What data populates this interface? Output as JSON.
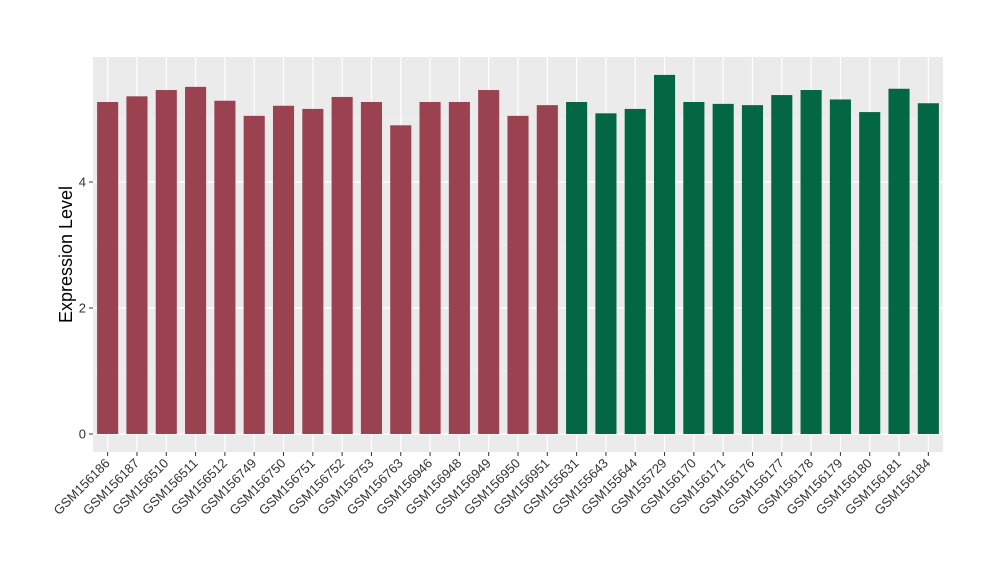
{
  "chart_data": {
    "type": "bar",
    "title": "",
    "xlabel": "",
    "ylabel": "Expression Level",
    "ylim": [
      0,
      5.95
    ],
    "yticks": [
      0,
      2,
      4
    ],
    "grid": true,
    "legend": "none",
    "panel_background": "#ebebeb",
    "categories": [
      "GSM156186",
      "GSM156187",
      "GSM156510",
      "GSM156511",
      "GSM156512",
      "GSM156749",
      "GSM156750",
      "GSM156751",
      "GSM156752",
      "GSM156753",
      "GSM156763",
      "GSM156946",
      "GSM156948",
      "GSM156949",
      "GSM156950",
      "GSM156951",
      "GSM155631",
      "GSM155643",
      "GSM155644",
      "GSM155729",
      "GSM156170",
      "GSM156171",
      "GSM156176",
      "GSM156177",
      "GSM156178",
      "GSM156179",
      "GSM156180",
      "GSM156181",
      "GSM156184"
    ],
    "values": [
      5.27,
      5.36,
      5.46,
      5.51,
      5.29,
      5.05,
      5.21,
      5.16,
      5.35,
      5.27,
      4.9,
      5.27,
      5.27,
      5.46,
      5.05,
      5.22,
      5.27,
      5.09,
      5.16,
      5.7,
      5.27,
      5.24,
      5.22,
      5.38,
      5.46,
      5.31,
      5.11,
      5.48,
      5.25
    ],
    "colors": [
      "#9b4250",
      "#9b4250",
      "#9b4250",
      "#9b4250",
      "#9b4250",
      "#9b4250",
      "#9b4250",
      "#9b4250",
      "#9b4250",
      "#9b4250",
      "#9b4250",
      "#9b4250",
      "#9b4250",
      "#9b4250",
      "#9b4250",
      "#9b4250",
      "#046744",
      "#046744",
      "#046744",
      "#046744",
      "#046744",
      "#046744",
      "#046744",
      "#046744",
      "#046744",
      "#046744",
      "#046744",
      "#046744",
      "#046744"
    ]
  }
}
